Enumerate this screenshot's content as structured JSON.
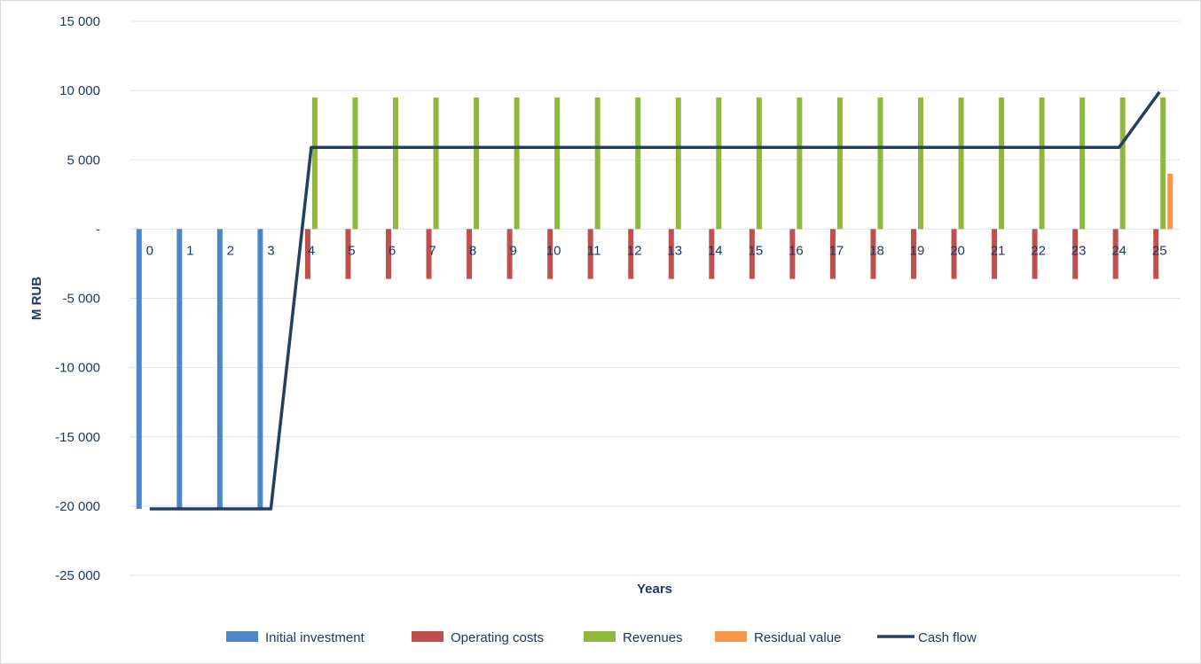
{
  "chart_data": {
    "type": "bar",
    "xlabel": "Years",
    "ylabel": "M RUB",
    "ylim": [
      -25000,
      15000
    ],
    "yticks": [
      15000,
      10000,
      5000,
      0,
      -5000,
      -10000,
      -15000,
      -20000,
      -25000
    ],
    "ytick_labels": [
      "15 000",
      "10 000",
      "5 000",
      "-",
      "-5 000",
      "-10 000",
      "-15 000",
      "-20 000",
      "-25 000"
    ],
    "grid": true,
    "legend_position": "bottom",
    "categories": [
      "0",
      "1",
      "2",
      "3",
      "4",
      "5",
      "6",
      "7",
      "8",
      "9",
      "10",
      "11",
      "12",
      "13",
      "14",
      "15",
      "16",
      "17",
      "18",
      "19",
      "20",
      "21",
      "22",
      "23",
      "24",
      "25"
    ],
    "series": [
      {
        "name": "Initial investment",
        "kind": "bar",
        "color": "#4a86c8",
        "values": [
          -20200,
          -20200,
          -20200,
          -20200,
          0,
          0,
          0,
          0,
          0,
          0,
          0,
          0,
          0,
          0,
          0,
          0,
          0,
          0,
          0,
          0,
          0,
          0,
          0,
          0,
          0,
          0
        ]
      },
      {
        "name": "Operating costs",
        "kind": "bar",
        "color": "#c0504d",
        "values": [
          0,
          0,
          0,
          0,
          -3600,
          -3600,
          -3600,
          -3600,
          -3600,
          -3600,
          -3600,
          -3600,
          -3600,
          -3600,
          -3600,
          -3600,
          -3600,
          -3600,
          -3600,
          -3600,
          -3600,
          -3600,
          -3600,
          -3600,
          -3600,
          -3600
        ]
      },
      {
        "name": "Revenues",
        "kind": "bar",
        "color": "#8fb83c",
        "values": [
          0,
          0,
          0,
          0,
          9500,
          9500,
          9500,
          9500,
          9500,
          9500,
          9500,
          9500,
          9500,
          9500,
          9500,
          9500,
          9500,
          9500,
          9500,
          9500,
          9500,
          9500,
          9500,
          9500,
          9500,
          9500
        ]
      },
      {
        "name": "Residual value",
        "kind": "bar",
        "color": "#f79646",
        "values": [
          0,
          0,
          0,
          0,
          0,
          0,
          0,
          0,
          0,
          0,
          0,
          0,
          0,
          0,
          0,
          0,
          0,
          0,
          0,
          0,
          0,
          0,
          0,
          0,
          0,
          4000
        ]
      },
      {
        "name": "Cash flow",
        "kind": "line",
        "color": "#243f60",
        "values": [
          -20200,
          -20200,
          -20200,
          -20200,
          5900,
          5900,
          5900,
          5900,
          5900,
          5900,
          5900,
          5900,
          5900,
          5900,
          5900,
          5900,
          5900,
          5900,
          5900,
          5900,
          5900,
          5900,
          5900,
          5900,
          5900,
          9900
        ]
      }
    ]
  }
}
